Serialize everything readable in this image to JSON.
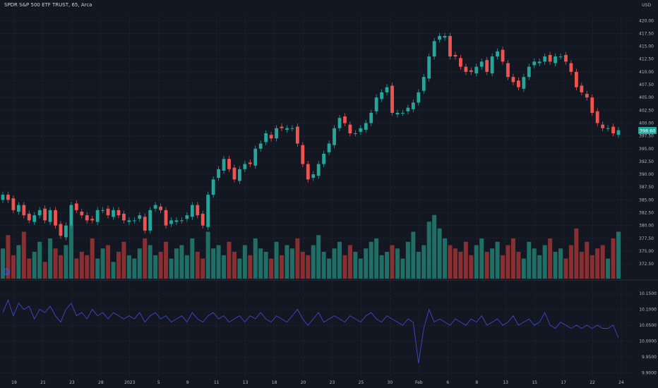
{
  "header": {
    "title": "SPDR S&P 500 ETF TRUST, 65, Arca",
    "currency": "USD"
  },
  "price_marker": {
    "value": "398.60",
    "color": "#26a69a"
  },
  "volume_icon": "info-icon",
  "colors": {
    "up": "#26a69a",
    "down": "#ef5350",
    "vol_up": "#1f6f66",
    "vol_down": "#8a2f31",
    "line": "#3d49c9",
    "grid": "#2a2e39",
    "bg": "#131722",
    "text": "#b2b5be"
  },
  "chart_data": [
    {
      "type": "candlestick",
      "title": "SPDR S&P 500 ETF TRUST, 65, Arca",
      "x_tick_labels": [
        "19",
        "21",
        "23",
        "28",
        "2023",
        "5",
        "9",
        "11",
        "13",
        "18",
        "20",
        "23",
        "25",
        "30",
        "Feb",
        "6",
        "8",
        "13",
        "15",
        "17",
        "22",
        "24"
      ],
      "y_tick_labels": [
        "420.00",
        "417.50",
        "415.00",
        "412.50",
        "410.00",
        "407.50",
        "405.00",
        "402.50",
        "400.00",
        "397.50",
        "395.00",
        "392.50",
        "390.00",
        "387.50",
        "385.00",
        "382.50",
        "380.00",
        "377.50",
        "375.00",
        "372.50"
      ],
      "ylim": [
        371,
        421
      ],
      "grid": true,
      "last_price": 398.6,
      "closes": [
        386,
        385,
        383,
        384,
        382,
        381,
        382,
        383,
        381,
        383,
        380,
        378,
        380,
        384,
        383,
        382,
        381,
        381,
        383,
        383,
        382,
        383,
        382,
        381,
        381,
        381,
        382,
        379,
        383,
        384,
        383,
        380,
        381,
        381,
        381,
        382,
        384,
        382,
        380,
        386,
        389,
        391,
        393,
        391,
        389,
        391,
        392,
        392,
        395,
        396,
        398,
        397,
        399,
        399,
        399,
        399,
        396,
        392,
        389,
        390,
        392,
        394,
        396,
        399,
        401,
        400,
        398,
        398,
        399,
        400,
        402,
        405,
        406,
        407,
        402,
        402,
        402,
        403,
        404,
        406,
        409,
        413,
        416,
        417,
        417,
        413,
        413,
        411,
        410,
        410,
        411,
        412,
        410,
        413,
        414,
        412,
        409,
        408,
        407,
        409,
        411,
        412,
        412,
        413,
        412,
        413,
        413,
        412,
        410,
        407,
        406,
        405,
        402,
        400,
        399,
        399,
        398,
        398.6
      ]
    },
    {
      "type": "bar",
      "name": "Volume",
      "values_relative": [
        0.45,
        0.65,
        0.35,
        0.5,
        0.7,
        0.3,
        0.4,
        0.55,
        0.25,
        0.6,
        0.45,
        0.35,
        0.5,
        0.8,
        0.3,
        0.4,
        0.35,
        0.6,
        0.3,
        0.45,
        0.5,
        0.25,
        0.4,
        0.55,
        0.35,
        0.3,
        0.45,
        0.6,
        0.5,
        0.35,
        0.4,
        0.55,
        0.3,
        0.45,
        0.5,
        0.35,
        0.6,
        0.4,
        0.3,
        0.7,
        0.45,
        0.5,
        0.35,
        0.55,
        0.4,
        0.3,
        0.5,
        0.35,
        0.6,
        0.45,
        0.4,
        0.3,
        0.55,
        0.35,
        0.5,
        0.45,
        0.6,
        0.4,
        0.35,
        0.5,
        0.65,
        0.4,
        0.3,
        0.45,
        0.55,
        0.35,
        0.5,
        0.4,
        0.3,
        0.45,
        0.55,
        0.6,
        0.35,
        0.4,
        0.5,
        0.45,
        0.3,
        0.55,
        0.7,
        0.4,
        0.5,
        0.85,
        0.95,
        0.75,
        0.6,
        0.5,
        0.45,
        0.4,
        0.55,
        0.35,
        0.5,
        0.6,
        0.4,
        0.45,
        0.55,
        0.35,
        0.5,
        0.6,
        0.4,
        0.3,
        0.55,
        0.45,
        0.35,
        0.5,
        0.6,
        0.4,
        0.45,
        0.3,
        0.5,
        0.75,
        0.4,
        0.55,
        0.35,
        0.45,
        0.5,
        0.3,
        0.6,
        0.7
      ]
    },
    {
      "type": "line",
      "name": "",
      "y_tick_labels": [
        "10.1500",
        "10.1000",
        "10.0500",
        "10.0000",
        "9.9500",
        "9.9000"
      ],
      "ylim": [
        9.885,
        10.175
      ],
      "values": [
        10.09,
        10.13,
        10.08,
        10.12,
        10.1,
        10.11,
        10.07,
        10.1,
        10.09,
        10.11,
        10.08,
        10.06,
        10.1,
        10.12,
        10.08,
        10.09,
        10.07,
        10.1,
        10.08,
        10.09,
        10.07,
        10.09,
        10.08,
        10.07,
        10.08,
        10.07,
        10.09,
        10.06,
        10.08,
        10.09,
        10.07,
        10.08,
        10.06,
        10.07,
        10.08,
        10.06,
        10.09,
        10.07,
        10.06,
        10.08,
        10.09,
        10.07,
        10.08,
        10.06,
        10.07,
        10.08,
        10.06,
        10.08,
        10.07,
        10.09,
        10.07,
        10.06,
        10.08,
        10.07,
        10.06,
        10.08,
        10.1,
        10.07,
        10.05,
        10.07,
        10.09,
        10.06,
        10.07,
        10.08,
        10.07,
        10.06,
        10.08,
        10.07,
        10.06,
        10.08,
        10.09,
        10.07,
        10.06,
        10.08,
        10.07,
        10.06,
        10.05,
        10.07,
        10.06,
        9.93,
        10.04,
        10.1,
        10.06,
        10.07,
        10.06,
        10.05,
        10.07,
        10.06,
        10.05,
        10.07,
        10.06,
        10.08,
        10.05,
        10.06,
        10.07,
        10.05,
        10.06,
        10.08,
        10.05,
        10.06,
        10.07,
        10.05,
        10.06,
        10.09,
        10.05,
        10.04,
        10.06,
        10.05,
        10.04,
        10.05,
        10.04,
        10.05,
        10.04,
        10.05,
        10.04,
        10.04,
        10.05,
        10.01
      ]
    }
  ]
}
